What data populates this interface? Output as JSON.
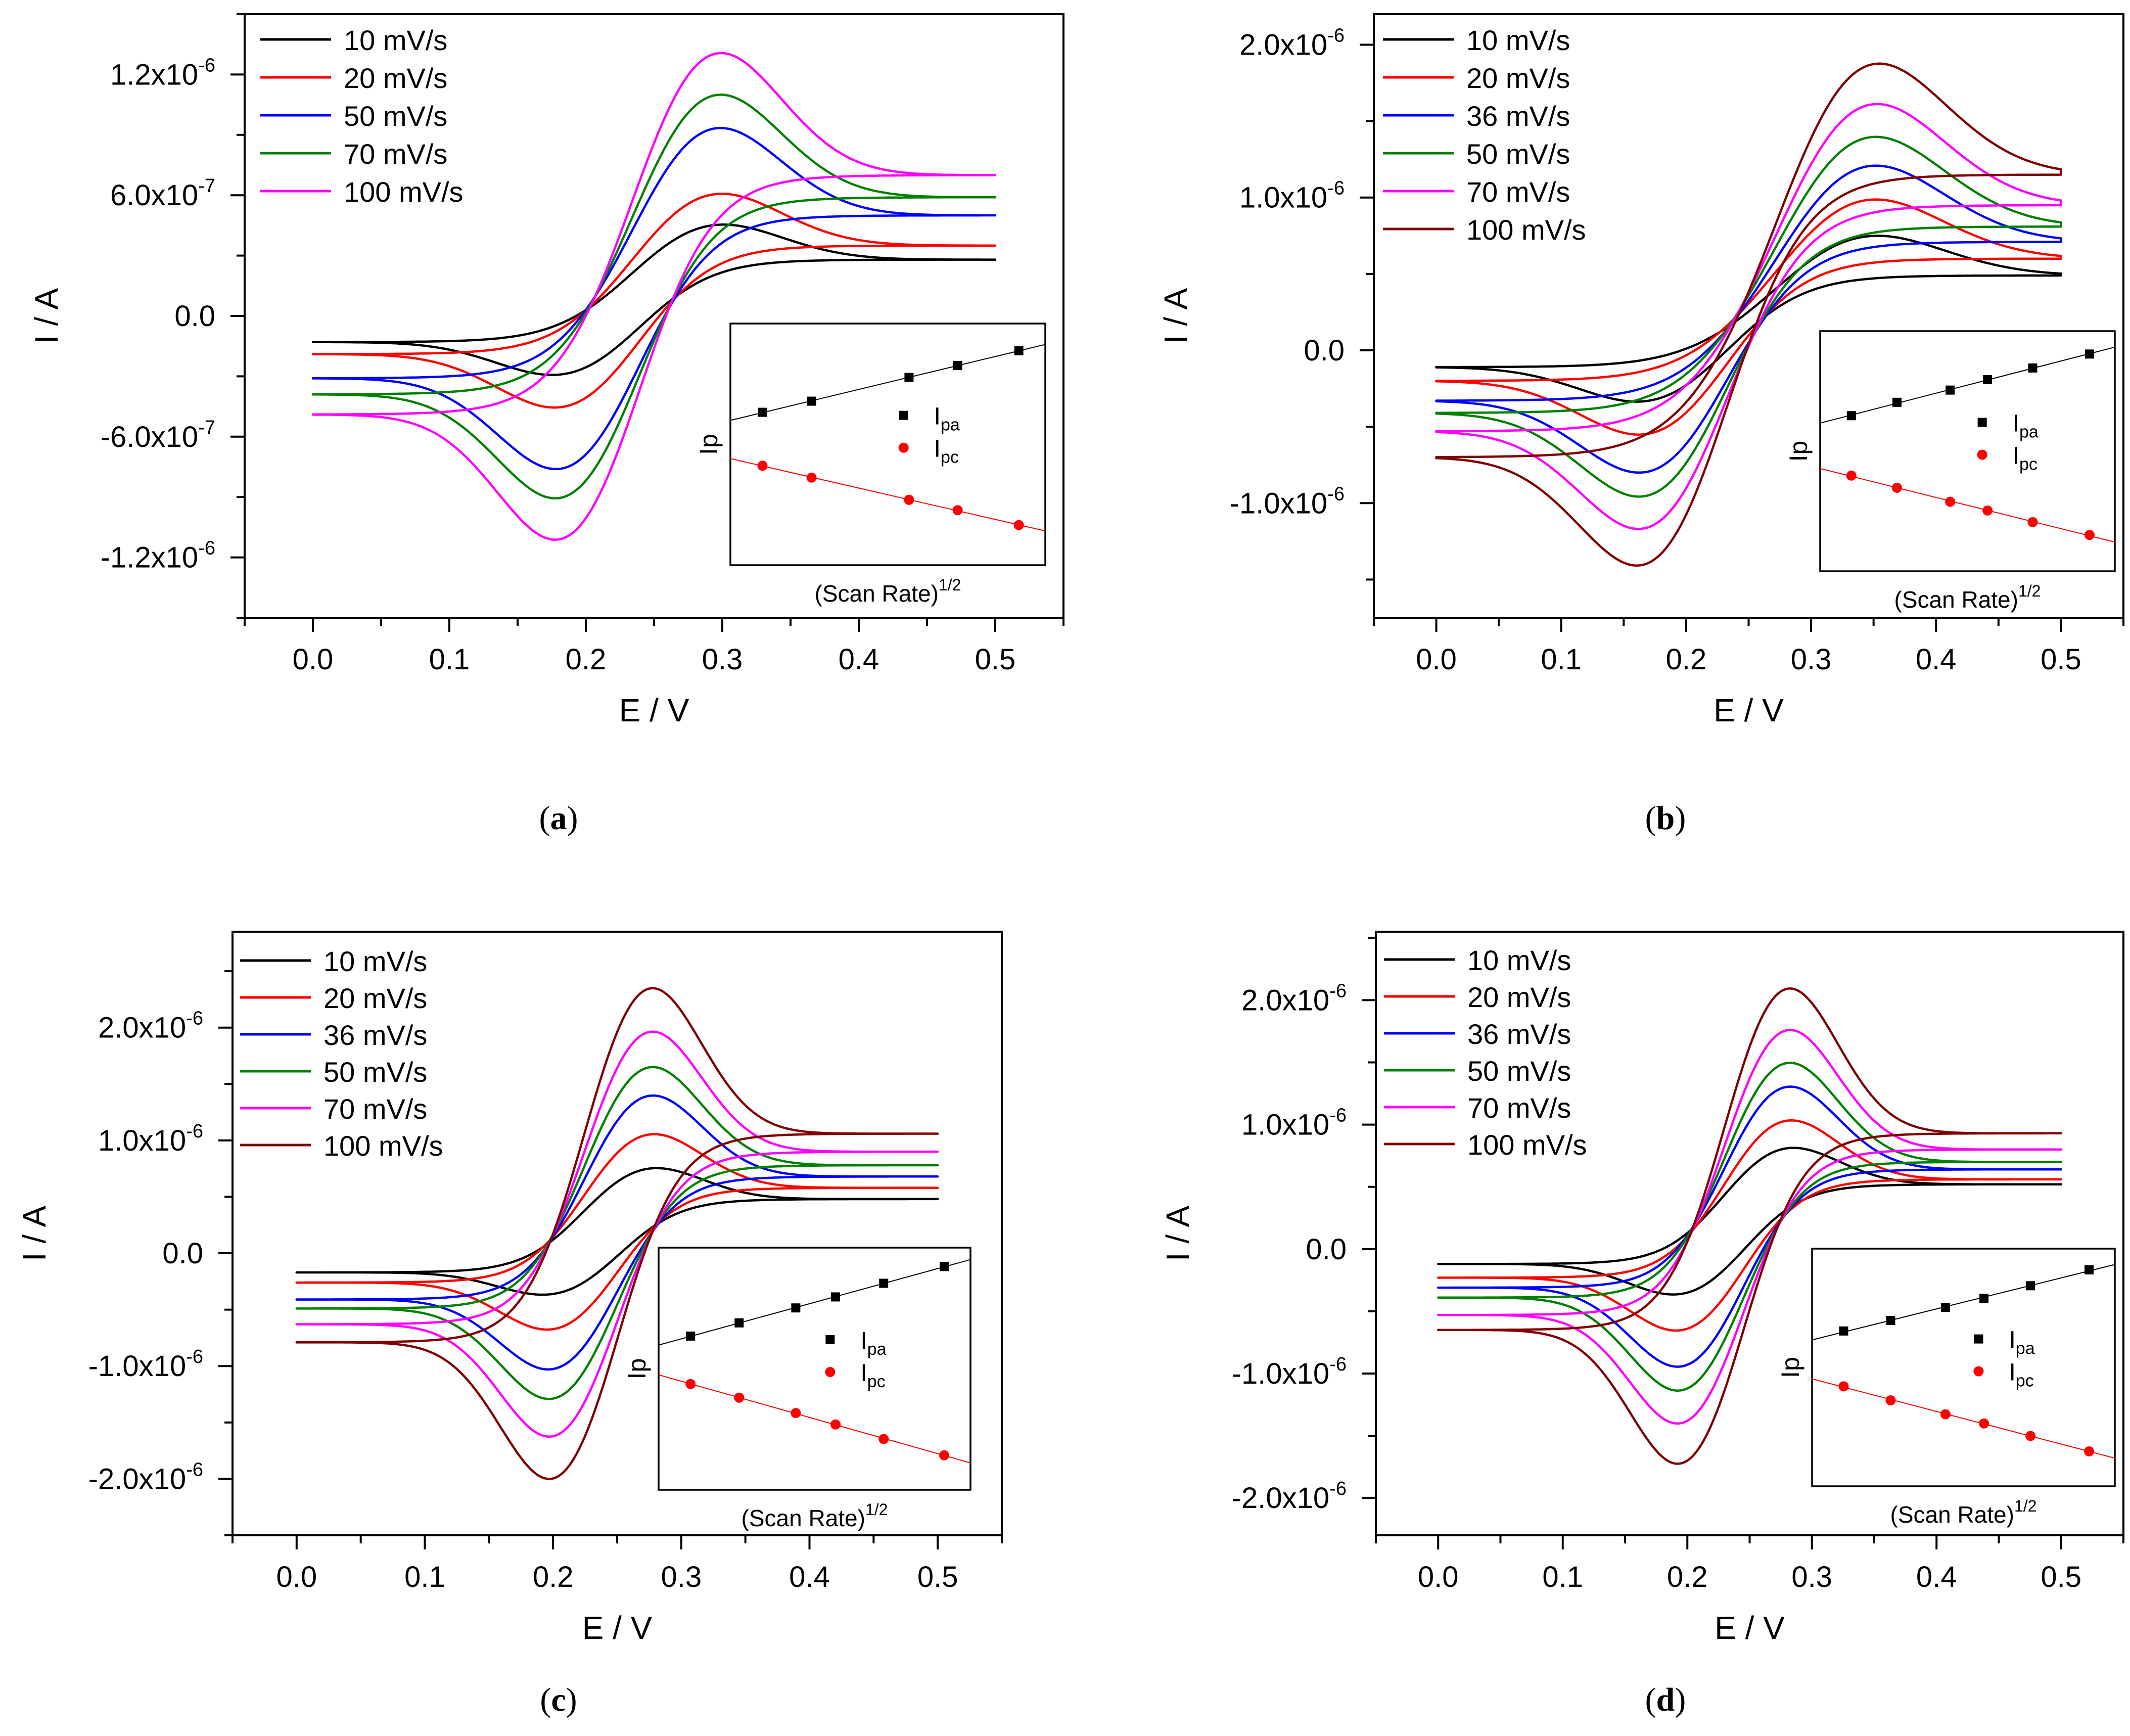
{
  "chart_data": [
    {
      "panel": "(a)",
      "panel_letter": "a",
      "type": "line",
      "xlabel": "E / V",
      "ylabel": "I / A",
      "xlim": [
        -0.05,
        0.55
      ],
      "ylim": [
        -1.5e-06,
        1.5e-06
      ],
      "x_ticks": [
        "0.0",
        "0.1",
        "0.2",
        "0.3",
        "0.4",
        "0.5"
      ],
      "y_ticks": [
        {
          "v": 1.2e-06,
          "m": "1.2x10",
          "e": "-6"
        },
        {
          "v": 6e-07,
          "m": "6.0x10",
          "e": "-7"
        },
        {
          "v": 0,
          "m": "0.0",
          "e": ""
        },
        {
          "v": -6e-07,
          "m": "-6.0x10",
          "e": "-7"
        },
        {
          "v": -1.2e-06,
          "m": "-1.2x10",
          "e": "-6"
        }
      ],
      "legend_position": "top-left",
      "params": {
        "Epa": 0.285,
        "Epc": 0.19,
        "Eend": 0.5,
        "Ecross": 0.16,
        "Ecross2": 0.305,
        "cw": 0.052,
        "aw": 0.055
      },
      "series": [
        {
          "name": "10 mV/s",
          "color": "#000000",
          "start": -1.3e-07,
          "ipa": 4.4e-07,
          "end": 2.8e-07,
          "ipc": -2.8e-07
        },
        {
          "name": "20 mV/s",
          "color": "#ff0000",
          "start": -1.9e-07,
          "ipa": 5.9e-07,
          "end": 3.5e-07,
          "ipc": -4.4e-07
        },
        {
          "name": "50 mV/s",
          "color": "#0000ff",
          "start": -3.1e-07,
          "ipa": 9.1e-07,
          "end": 5e-07,
          "ipc": -7.4e-07
        },
        {
          "name": "70 mV/s",
          "color": "#008000",
          "start": -3.9e-07,
          "ipa": 1.07e-06,
          "end": 5.9e-07,
          "ipc": -8.8e-07
        },
        {
          "name": "100 mV/s",
          "color": "#ff00ff",
          "start": -4.9e-07,
          "ipa": 1.27e-06,
          "end": 7e-07,
          "ipc": -1.08e-06
        }
      ],
      "inset": {
        "xlabel": "(Scan Rate)",
        "xlabel_sup": "1/2",
        "ylabel": "Ip",
        "legend": [
          {
            "main": "I",
            "sub": "pa",
            "marker": "square",
            "color": "#000000"
          },
          {
            "main": "I",
            "sub": "pc",
            "marker": "circle",
            "color": "#ff0000"
          }
        ],
        "x": [
          0.1,
          0.1414,
          0.2236,
          0.2646,
          0.3162
        ],
        "ipa": [
          4.4,
          5.9,
          9.1,
          10.7,
          12.7
        ],
        "ipc": [
          -2.8,
          -4.4,
          -7.4,
          -8.8,
          -10.8
        ],
        "ylim": [
          -12.8,
          15.0
        ]
      }
    },
    {
      "panel": "(b)",
      "panel_letter": "b",
      "type": "line",
      "xlabel": "E / V",
      "ylabel": "I / A",
      "xlim": [
        -0.05,
        0.55
      ],
      "ylim": [
        -1.75e-06,
        2.2e-06
      ],
      "x_ticks": [
        "0.0",
        "0.1",
        "0.2",
        "0.3",
        "0.4",
        "0.5"
      ],
      "y_ticks": [
        {
          "v": 2e-06,
          "m": "2.0x10",
          "e": "-6"
        },
        {
          "v": 1e-06,
          "m": "1.0x10",
          "e": "-6"
        },
        {
          "v": 0,
          "m": "0.0",
          "e": ""
        },
        {
          "v": -1e-06,
          "m": "-1.0x10",
          "e": "-6"
        }
      ],
      "legend_position": "top-left",
      "params": {
        "Epa": 0.33,
        "Epc": 0.18,
        "Eend": 0.5,
        "Ecross": 0.2,
        "Ecross2": 0.31,
        "cw": 0.06,
        "aw": 0.07,
        "Epa_shift": 0.066,
        "Epc_shift": -0.066
      },
      "series": [
        {
          "name": "10 mV/s",
          "color": "#000000",
          "start": -1.1e-07,
          "ipa": 7.2e-07,
          "end": 4.9e-07,
          "ipc": -3.1e-07
        },
        {
          "name": "20 mV/s",
          "color": "#ff0000",
          "start": -2e-07,
          "ipa": 9.5e-07,
          "end": 6e-07,
          "ipc": -5.2e-07
        },
        {
          "name": "36 mV/s",
          "color": "#0000ff",
          "start": -3.3e-07,
          "ipa": 1.16e-06,
          "end": 7.1e-07,
          "ipc": -7.6e-07
        },
        {
          "name": "50 mV/s",
          "color": "#008000",
          "start": -4.1e-07,
          "ipa": 1.34e-06,
          "end": 8.1e-07,
          "ipc": -9.1e-07
        },
        {
          "name": "70 mV/s",
          "color": "#ff00ff",
          "start": -5.3e-07,
          "ipa": 1.54e-06,
          "end": 9.5e-07,
          "ipc": -1.11e-06
        },
        {
          "name": "100 mV/s",
          "color": "#800000",
          "start": -7e-07,
          "ipa": 1.78e-06,
          "end": 1.15e-06,
          "ipc": -1.33e-06
        }
      ],
      "inset": {
        "xlabel": "(Scan Rate)",
        "xlabel_sup": "1/2",
        "ylabel": "Ip",
        "legend": [
          {
            "main": "I",
            "sub": "pa",
            "marker": "square",
            "color": "#000000"
          },
          {
            "main": "I",
            "sub": "pc",
            "marker": "circle",
            "color": "#ff0000"
          }
        ],
        "x": [
          0.1,
          0.1414,
          0.1897,
          0.2236,
          0.2646,
          0.3162
        ],
        "ipa": [
          7.2,
          9.5,
          11.6,
          13.4,
          15.4,
          17.8
        ],
        "ipc": [
          -3.1,
          -5.2,
          -7.6,
          -9.1,
          -11.1,
          -13.3
        ],
        "ylim": [
          -15.2,
          20.0
        ]
      }
    },
    {
      "panel": "(c)",
      "panel_letter": "c",
      "type": "line",
      "xlabel": "E / V",
      "ylabel": "I / A",
      "xlim": [
        -0.05,
        0.55
      ],
      "ylim": [
        -2.5e-06,
        2.85e-06
      ],
      "x_ticks": [
        "0.0",
        "0.1",
        "0.2",
        "0.3",
        "0.4",
        "0.5"
      ],
      "y_ticks": [
        {
          "v": 2e-06,
          "m": "2.0x10",
          "e": "-6"
        },
        {
          "v": 1e-06,
          "m": "1.0x10",
          "e": "-6"
        },
        {
          "v": 0,
          "m": "0.0",
          "e": ""
        },
        {
          "v": -1e-06,
          "m": "-1.0x10",
          "e": "-6"
        },
        {
          "v": -2e-06,
          "m": "-2.0x10",
          "e": "-6"
        }
      ],
      "legend_position": "top-left",
      "params": {
        "Epa": 0.27,
        "Epc": 0.205,
        "Eend": 0.5,
        "Ecross": 0.17,
        "Ecross2": 0.3,
        "cw": 0.045,
        "aw": 0.045
      },
      "series": [
        {
          "name": "10 mV/s",
          "color": "#000000",
          "start": -1.7e-07,
          "ipa": 7.4e-07,
          "end": 4.8e-07,
          "ipc": -3.5e-07
        },
        {
          "name": "20 mV/s",
          "color": "#ff0000",
          "start": -2.6e-07,
          "ipa": 1.04e-06,
          "end": 5.8e-07,
          "ipc": -6.6e-07
        },
        {
          "name": "36 mV/s",
          "color": "#0000ff",
          "start": -4.1e-07,
          "ipa": 1.38e-06,
          "end": 6.8e-07,
          "ipc": -1.01e-06
        },
        {
          "name": "50 mV/s",
          "color": "#008000",
          "start": -4.9e-07,
          "ipa": 1.63e-06,
          "end": 7.8e-07,
          "ipc": -1.27e-06
        },
        {
          "name": "70 mV/s",
          "color": "#ff00ff",
          "start": -6.3e-07,
          "ipa": 1.94e-06,
          "end": 9e-07,
          "ipc": -1.6e-06
        },
        {
          "name": "100 mV/s",
          "color": "#800000",
          "start": -7.9e-07,
          "ipa": 2.32e-06,
          "end": 1.06e-06,
          "ipc": -1.97e-06
        }
      ],
      "inset": {
        "xlabel": "(Scan Rate)",
        "xlabel_sup": "1/2",
        "ylabel": "Ip",
        "legend": [
          {
            "main": "I",
            "sub": "pa",
            "marker": "square",
            "color": "#000000"
          },
          {
            "main": "I",
            "sub": "pc",
            "marker": "circle",
            "color": "#ff0000"
          }
        ],
        "x": [
          0.1,
          0.1414,
          0.1897,
          0.2236,
          0.2646,
          0.3162
        ],
        "ipa": [
          7.4,
          10.4,
          13.8,
          16.3,
          19.4,
          23.2
        ],
        "ipc": [
          -3.5,
          -6.6,
          -10.1,
          -12.7,
          -16.0,
          -19.7
        ],
        "ylim": [
          -21.8,
          25.2
        ]
      }
    },
    {
      "panel": "(d)",
      "panel_letter": "d",
      "type": "line",
      "xlabel": "E / V",
      "ylabel": "I / A",
      "xlim": [
        -0.05,
        0.55
      ],
      "ylim": [
        -2.3e-06,
        2.55e-06
      ],
      "x_ticks": [
        "0.0",
        "0.1",
        "0.2",
        "0.3",
        "0.4",
        "0.5"
      ],
      "y_ticks": [
        {
          "v": 2e-06,
          "m": "2.0x10",
          "e": "-6"
        },
        {
          "v": 1e-06,
          "m": "1.0x10",
          "e": "-6"
        },
        {
          "v": 0,
          "m": "0.0",
          "e": ""
        },
        {
          "v": -1e-06,
          "m": "-1.0x10",
          "e": "-6"
        },
        {
          "v": -2e-06,
          "m": "-2.0x10",
          "e": "-6"
        }
      ],
      "legend_position": "top-left",
      "params": {
        "Epa": 0.275,
        "Epc": 0.2,
        "Eend": 0.5,
        "Ecross": 0.17,
        "Ecross2": 0.31,
        "cw": 0.045,
        "aw": 0.045
      },
      "series": [
        {
          "name": "10 mV/s",
          "color": "#000000",
          "start": -1.2e-07,
          "ipa": 8e-07,
          "end": 5.2e-07,
          "ipc": -3.5e-07
        },
        {
          "name": "20 mV/s",
          "color": "#ff0000",
          "start": -2.3e-07,
          "ipa": 1.02e-06,
          "end": 5.6e-07,
          "ipc": -6.4e-07
        },
        {
          "name": "36 mV/s",
          "color": "#0000ff",
          "start": -3.1e-07,
          "ipa": 1.29e-06,
          "end": 6.4e-07,
          "ipc": -9.3e-07
        },
        {
          "name": "50 mV/s",
          "color": "#008000",
          "start": -3.9e-07,
          "ipa": 1.48e-06,
          "end": 7e-07,
          "ipc": -1.12e-06
        },
        {
          "name": "70 mV/s",
          "color": "#ff00ff",
          "start": -5.3e-07,
          "ipa": 1.74e-06,
          "end": 8e-07,
          "ipc": -1.38e-06
        },
        {
          "name": "100 mV/s",
          "color": "#800000",
          "start": -6.5e-07,
          "ipa": 2.07e-06,
          "end": 9.3e-07,
          "ipc": -1.7e-06
        }
      ],
      "inset": {
        "xlabel": "(Scan Rate)",
        "xlabel_sup": "1/2",
        "ylabel": "Ip",
        "legend": [
          {
            "main": "I",
            "sub": "pa",
            "marker": "square",
            "color": "#000000"
          },
          {
            "main": "I",
            "sub": "pc",
            "marker": "circle",
            "color": "#ff0000"
          }
        ],
        "x": [
          0.1,
          0.1414,
          0.1897,
          0.2236,
          0.2646,
          0.3162
        ],
        "ipa": [
          8.0,
          10.2,
          12.9,
          14.8,
          17.4,
          20.7
        ],
        "ipc": [
          -3.5,
          -6.4,
          -9.3,
          -11.2,
          -13.8,
          -17.0
        ],
        "ylim": [
          -19.0,
          23.0
        ]
      }
    }
  ]
}
